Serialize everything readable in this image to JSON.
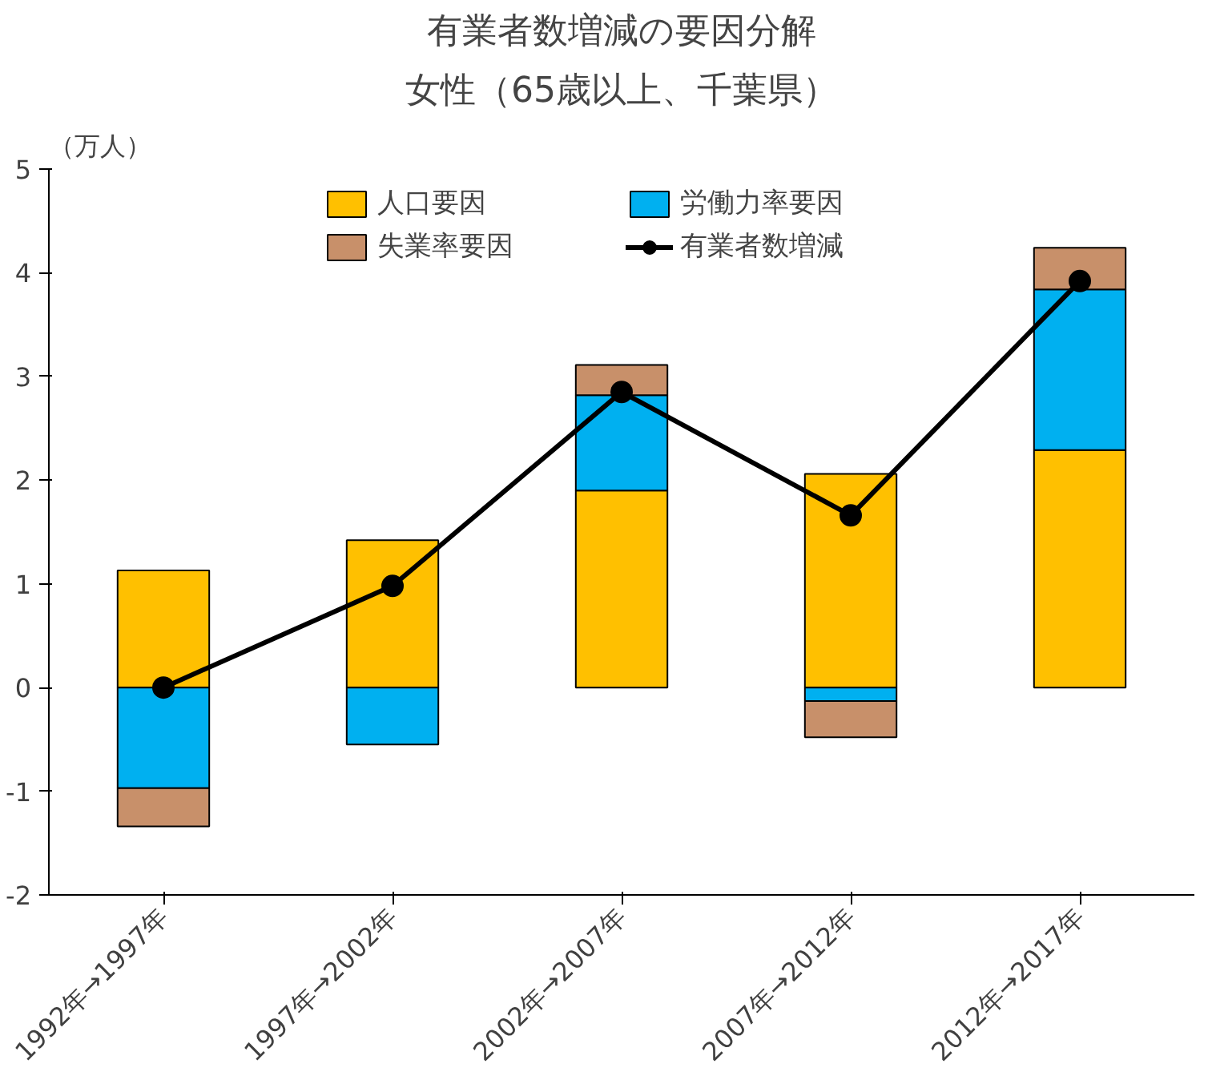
{
  "chart_data": {
    "type": "bar",
    "stacked": true,
    "title": "有業者数増減の要因分解",
    "subtitle": "女性（65歳以上、千葉県）",
    "ylabel": "（万人）",
    "categories": [
      "1992年→1997年",
      "1997年→2002年",
      "2002年→2007年",
      "2007年→2012年",
      "2012年→2017年"
    ],
    "series": [
      {
        "name": "人口要因",
        "color": "#ffc000",
        "values": [
          1.13,
          1.42,
          1.9,
          2.06,
          2.29
        ]
      },
      {
        "name": "労働力率要因",
        "color": "#00b0f0",
        "values": [
          -0.97,
          -0.55,
          0.92,
          -0.13,
          1.55
        ]
      },
      {
        "name": "失業率要因",
        "color": "#c8906a",
        "values": [
          -0.37,
          0,
          0.29,
          -0.35,
          0.4
        ]
      },
      {
        "name": "有業者数増減",
        "color": "#000000",
        "type": "line",
        "marker": "circle",
        "values": [
          0,
          0.98,
          2.85,
          1.66,
          3.92
        ]
      }
    ],
    "ylim": [
      -2,
      5
    ],
    "yticks": [
      -2,
      -1,
      0,
      1,
      2,
      3,
      4,
      5
    ],
    "grid": false,
    "legend": "top"
  }
}
